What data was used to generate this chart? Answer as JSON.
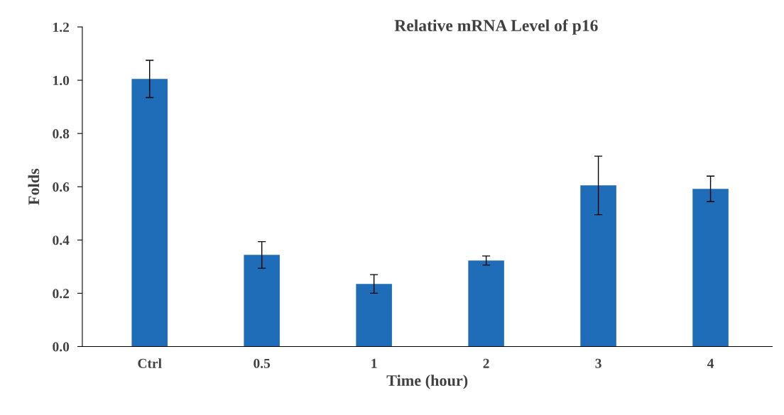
{
  "chart_data": {
    "type": "bar",
    "title": "Relative mRNA Level of p16",
    "xlabel": "Time (hour)",
    "ylabel": "Folds",
    "categories": [
      "Ctrl",
      "0.5",
      "1",
      "2",
      "3",
      "4"
    ],
    "values": [
      1.005,
      0.344,
      0.235,
      0.323,
      0.605,
      0.592
    ],
    "errors": [
      0.07,
      0.05,
      0.035,
      0.017,
      0.11,
      0.048
    ],
    "color": "#1f6cb8",
    "ylim": [
      0,
      1.2
    ],
    "yticks": [
      "0.0",
      0.2,
      0.4,
      0.6,
      0.8,
      "1.0",
      1.2
    ],
    "grid": false,
    "legend": false
  }
}
